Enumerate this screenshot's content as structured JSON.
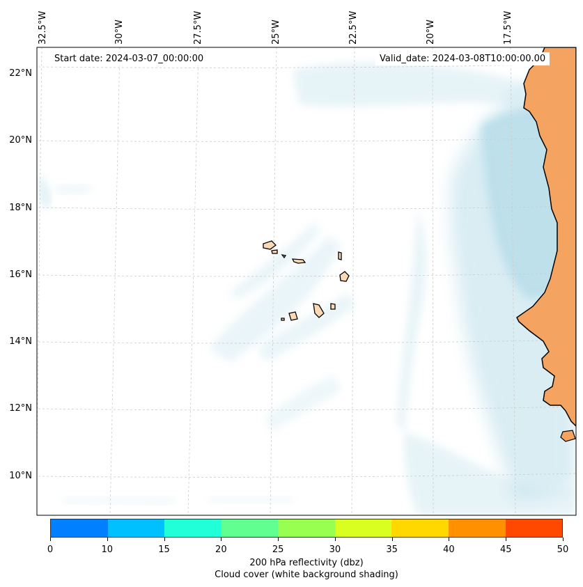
{
  "map": {
    "start_date": "Start date: 2024-03-07_00:00:00",
    "valid_date": "Valid_date: 2024-03-08T10:00:00.00",
    "lon_labels": [
      "32.5°W",
      "30°W",
      "27.5°W",
      "25°W",
      "22.5°W",
      "20°W",
      "17.5°W"
    ],
    "lat_labels": [
      "22°N",
      "20°N",
      "18°N",
      "16°N",
      "14°N",
      "12°N",
      "10°N"
    ],
    "land_color": "#f4a460",
    "island_color": "#fcd9b6",
    "cloud_color": "#add8e6"
  },
  "colorbar": {
    "colors": [
      "#0080ff",
      "#00c0ff",
      "#20ffd8",
      "#60ff90",
      "#98ff50",
      "#d8ff20",
      "#ffd800",
      "#ff9000",
      "#ff4800"
    ],
    "ticks": [
      "0",
      "10",
      "15",
      "20",
      "25",
      "30",
      "35",
      "40",
      "45",
      "50"
    ],
    "label": "200 hPa reflectivity (dbz)",
    "sublabel": "Cloud cover (white background shading)"
  }
}
